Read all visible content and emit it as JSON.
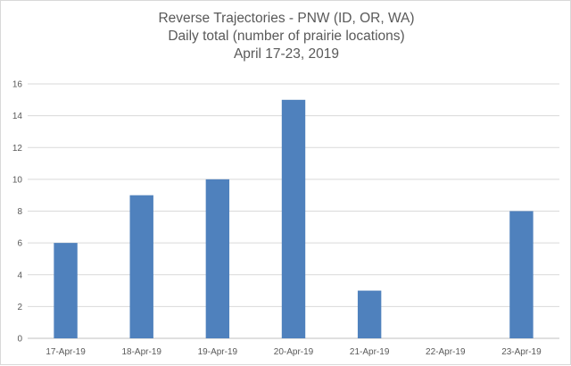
{
  "chart_data": {
    "type": "bar",
    "title": [
      "Reverse Trajectories - PNW (ID, OR, WA)",
      "Daily total (number of prairie locations)",
      "April 17-23, 2019"
    ],
    "categories": [
      "17-Apr-19",
      "18-Apr-19",
      "19-Apr-19",
      "20-Apr-19",
      "21-Apr-19",
      "22-Apr-19",
      "23-Apr-19"
    ],
    "values": [
      6,
      9,
      10,
      15,
      3,
      0,
      8
    ],
    "ylim": [
      0,
      16
    ],
    "yticks": [
      "0",
      "2",
      "4",
      "6",
      "8",
      "10",
      "12",
      "14",
      "16"
    ],
    "xlabel": "",
    "ylabel": "",
    "grid": true,
    "legend": "none",
    "colors": {
      "bar": "#4f81bd",
      "grid": "#d9d9d9",
      "text": "#595959"
    }
  }
}
